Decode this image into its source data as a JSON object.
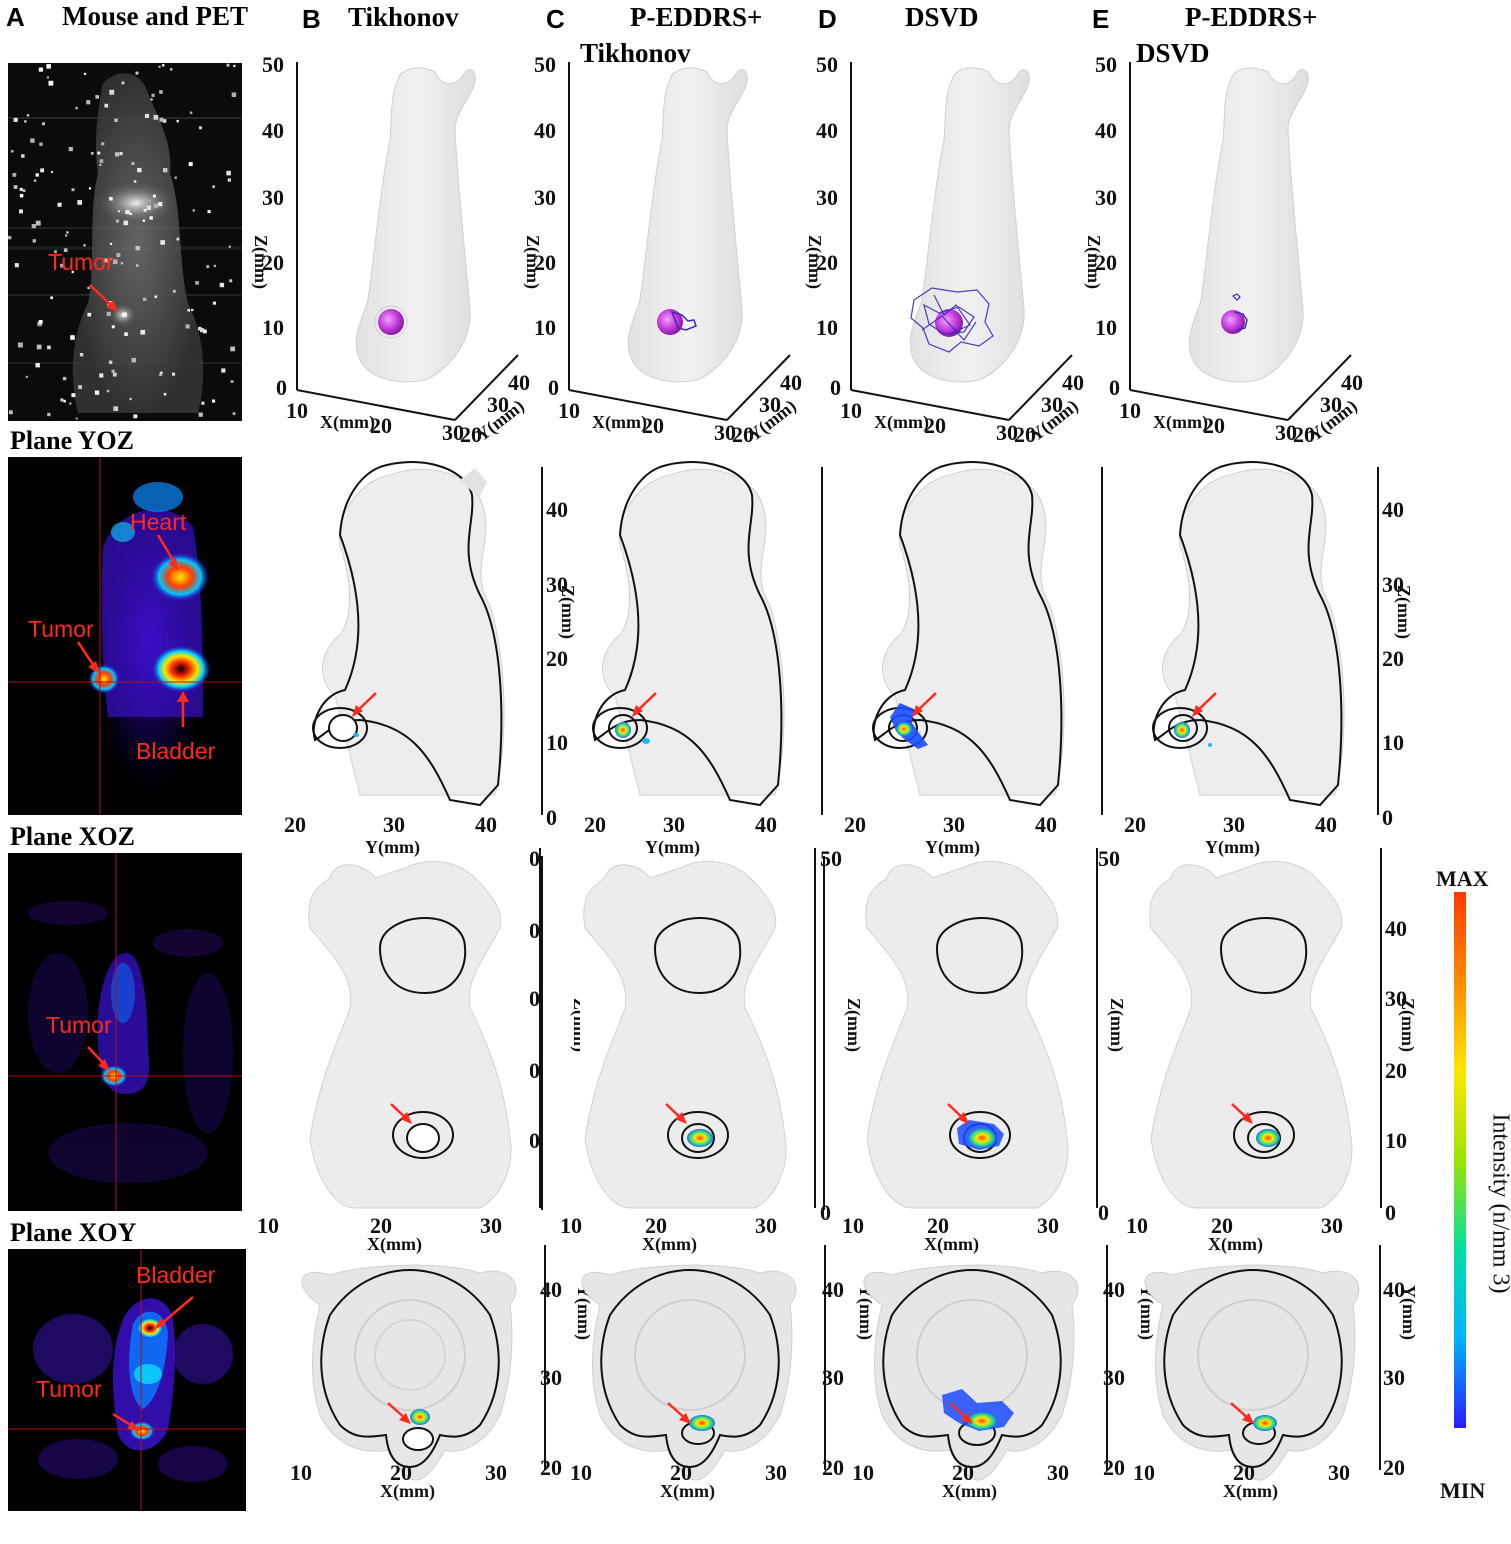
{
  "panels": {
    "A": {
      "label": "A",
      "title": "Mouse and PET"
    },
    "B": {
      "label": "B",
      "title_l1": "Tikhonov",
      "title_l2": ""
    },
    "C": {
      "label": "C",
      "title_l1": "P-EDDRS+",
      "title_l2": "Tikhonov"
    },
    "D": {
      "label": "D",
      "title_l1": "DSVD",
      "title_l2": ""
    },
    "E": {
      "label": "E",
      "title_l1": "P-EDDRS+",
      "title_l2": "DSVD"
    }
  },
  "row_labels": {
    "yoz": "Plane YOZ",
    "xoz": "Plane XOZ",
    "xoy": "Plane XOY"
  },
  "annotations": {
    "pet_tumor": "Tumor",
    "yoz_heart": "Heart",
    "yoz_tumor": "Tumor",
    "yoz_bladder": "Bladder",
    "xoz_tumor": "Tumor",
    "xoy_bladder": "Bladder",
    "xoy_tumor": "Tumor"
  },
  "axes": {
    "iso": {
      "z_ticks": [
        "50",
        "40",
        "30",
        "20",
        "10",
        "0"
      ],
      "z_label": "Z(mm)",
      "x_ticks": [
        "10",
        "20",
        "30"
      ],
      "x_label": "X(mm)",
      "y_ticks": [
        "20",
        "30",
        "40"
      ],
      "y_label": "Y(mm)"
    },
    "yoz": {
      "z_ticks": [
        "40",
        "30",
        "20",
        "10",
        "0"
      ],
      "z_label": "Z(mm)",
      "y_ticks": [
        "20",
        "30",
        "40"
      ],
      "y_label": "Y(mm)"
    },
    "xoz": {
      "z_ticks": [
        "50",
        "40",
        "30",
        "20",
        "10",
        "0"
      ],
      "z_label": "Z(mm)",
      "x_ticks": [
        "10",
        "20",
        "30"
      ],
      "x_label": "X(mm)"
    },
    "xoy": {
      "y_ticks": [
        "40",
        "30",
        "20"
      ],
      "y_label": "Y(mm)",
      "x_ticks": [
        "10",
        "20",
        "30"
      ],
      "x_label": "X(mm)"
    }
  },
  "colorbar": {
    "max_label": "MAX",
    "min_label": "MIN",
    "title": "Intensity (n/mm 3)",
    "colors": [
      "#2b1bff",
      "#00b3ff",
      "#00e0a0",
      "#9be400",
      "#ffe600",
      "#ff8a00",
      "#ff3a00"
    ]
  }
}
